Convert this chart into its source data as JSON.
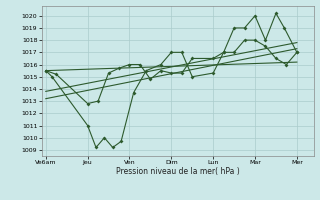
{
  "xlabel": "Pression niveau de la mer( hPa )",
  "bg_color": "#cce8e8",
  "grid_color": "#aacccc",
  "line_color": "#2d5a2d",
  "ylim": [
    1008.5,
    1020.8
  ],
  "yticks": [
    1009,
    1010,
    1011,
    1012,
    1013,
    1014,
    1015,
    1016,
    1017,
    1018,
    1019,
    1020
  ],
  "xtick_labels": [
    "Ve6am",
    "Jeu",
    "Ven",
    "Dim",
    "Lun",
    "Mar",
    "Mer"
  ],
  "xtick_positions": [
    0,
    2,
    4,
    6,
    8,
    10,
    12
  ],
  "xlim": [
    -0.2,
    12.8
  ],
  "series1_x": [
    0,
    0.3,
    2.0,
    2.4,
    2.8,
    3.2,
    3.6,
    4.2,
    4.8,
    5.5,
    6.0,
    6.5,
    7.0,
    8.0,
    8.5,
    9.0,
    9.5,
    10.0,
    10.5,
    11.0,
    11.4,
    12.0
  ],
  "series1_y": [
    1015.5,
    1015.0,
    1011.0,
    1009.2,
    1010.0,
    1009.2,
    1009.7,
    1013.7,
    1015.5,
    1016.0,
    1017.0,
    1017.0,
    1015.0,
    1015.3,
    1017.0,
    1019.0,
    1019.0,
    1020.0,
    1018.0,
    1020.2,
    1019.0,
    1017.0
  ],
  "series2_x": [
    0,
    0.5,
    2.0,
    2.5,
    3.0,
    3.5,
    4.0,
    4.5,
    5.0,
    5.5,
    6.0,
    6.5,
    7.0,
    8.0,
    8.5,
    9.0,
    9.5,
    10.0,
    10.5,
    11.0,
    11.5,
    12.0
  ],
  "series2_y": [
    1015.5,
    1015.2,
    1012.8,
    1013.0,
    1015.3,
    1015.7,
    1016.0,
    1016.0,
    1014.8,
    1015.5,
    1015.3,
    1015.3,
    1016.5,
    1016.5,
    1017.0,
    1017.0,
    1018.0,
    1018.0,
    1017.5,
    1016.5,
    1016.0,
    1017.0
  ],
  "trend1_x": [
    0,
    12
  ],
  "trend1_y": [
    1015.5,
    1016.2
  ],
  "trend2_x": [
    0,
    12
  ],
  "trend2_y": [
    1013.8,
    1017.8
  ],
  "trend3_x": [
    0,
    12
  ],
  "trend3_y": [
    1013.2,
    1017.3
  ]
}
